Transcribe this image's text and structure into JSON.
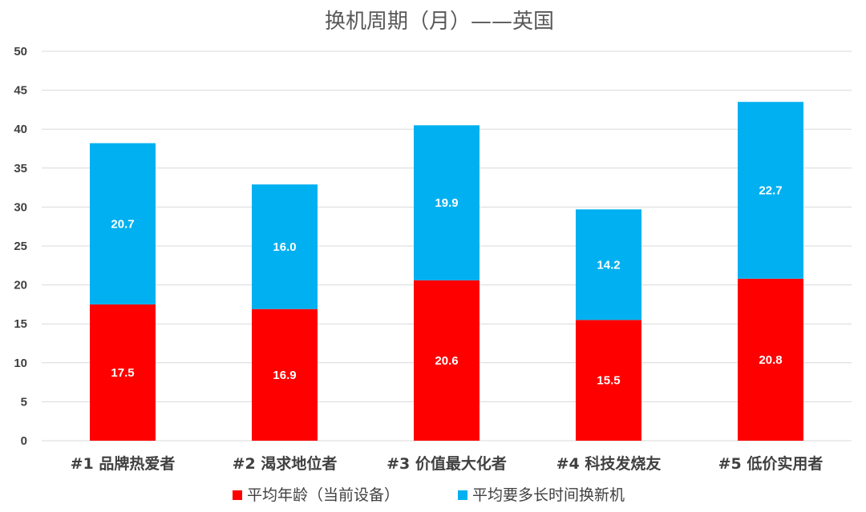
{
  "chart_data": {
    "type": "bar",
    "stacked": true,
    "title": "换机周期（月）——英国",
    "categories": [
      "#1 品牌热爱者",
      "#2 渴求地位者",
      "#3 价值最大化者",
      "#4 科技发烧友",
      "#5 低价实用者"
    ],
    "series": [
      {
        "name": "平均年龄（当前设备）",
        "color": "#ff0000",
        "values": [
          17.5,
          16.9,
          20.6,
          15.5,
          20.8
        ]
      },
      {
        "name": "平均要多长时间换新机",
        "color": "#00b0f0",
        "values": [
          20.7,
          16.0,
          19.9,
          14.2,
          22.7
        ]
      }
    ],
    "ylim": [
      0,
      50
    ],
    "yticks": [
      0,
      5,
      10,
      15,
      20,
      25,
      30,
      35,
      40,
      45,
      50
    ],
    "grid": true,
    "legend_position": "bottom",
    "data_labels": true
  }
}
